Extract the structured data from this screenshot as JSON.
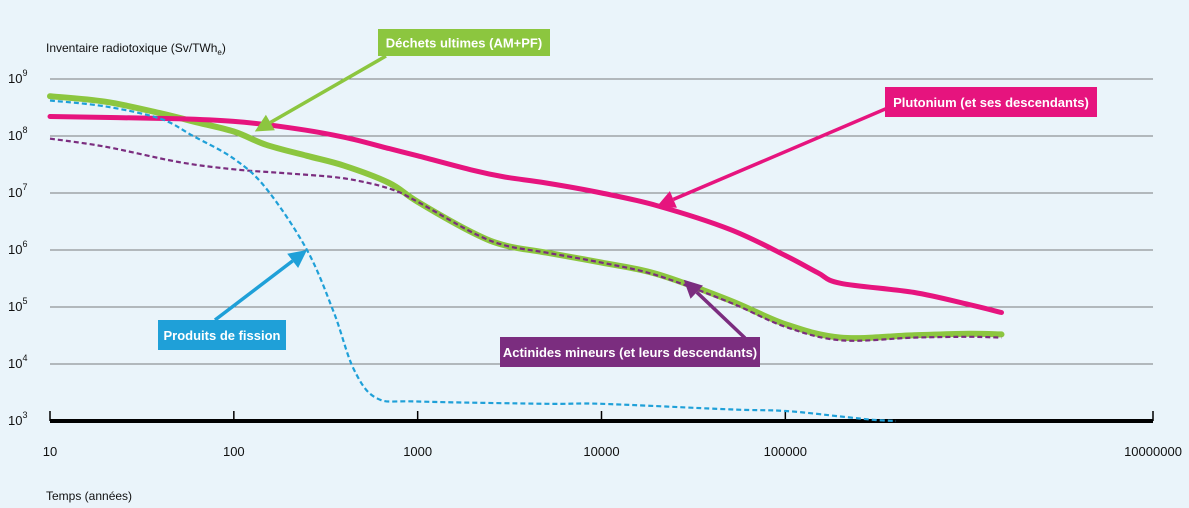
{
  "chart_data": {
    "type": "line",
    "ylabel_main": "Inventaire radiotoxique (Sv/TWh",
    "ylabel_sub": "e",
    "ylabel_close": ")",
    "xlabel": "Temps (années)",
    "x_scale": "log",
    "y_scale": "log",
    "xlim": [
      10,
      10000000
    ],
    "ylim": [
      1000,
      1000000000
    ],
    "grid": true,
    "x_ticks": [
      {
        "value": 10,
        "label": "10"
      },
      {
        "value": 100,
        "label": "100"
      },
      {
        "value": 1000,
        "label": "1000"
      },
      {
        "value": 10000,
        "label": "10000"
      },
      {
        "value": 100000,
        "label": "100000"
      },
      {
        "value": 10000000,
        "label": "10000000"
      }
    ],
    "y_ticks": [
      {
        "value": 1000,
        "base": "10",
        "exp": "3"
      },
      {
        "value": 10000,
        "base": "10",
        "exp": "4"
      },
      {
        "value": 100000,
        "base": "10",
        "exp": "5"
      },
      {
        "value": 1000000,
        "base": "10",
        "exp": "6"
      },
      {
        "value": 10000000,
        "base": "10",
        "exp": "7"
      },
      {
        "value": 100000000,
        "base": "10",
        "exp": "8"
      },
      {
        "value": 1000000000,
        "base": "10",
        "exp": "9"
      }
    ],
    "series": [
      {
        "name": "Déchets ultimes (AM+PF)",
        "color": "#8cc63f",
        "style": "solid",
        "width": 6,
        "points": [
          [
            10,
            500000000
          ],
          [
            20,
            400000000
          ],
          [
            40,
            250000000
          ],
          [
            60,
            180000000
          ],
          [
            100,
            120000000
          ],
          [
            150,
            70000000
          ],
          [
            250,
            45000000
          ],
          [
            400,
            30000000
          ],
          [
            700,
            15000000
          ],
          [
            1000,
            7000000
          ],
          [
            2000,
            2000000
          ],
          [
            3000,
            1200000
          ],
          [
            5000,
            900000
          ],
          [
            10000,
            600000
          ],
          [
            20000,
            380000
          ],
          [
            50000,
            130000
          ],
          [
            100000,
            50000
          ],
          [
            200000,
            29000
          ],
          [
            500000,
            32000
          ],
          [
            1000000,
            34000
          ],
          [
            1500000,
            33000
          ]
        ]
      },
      {
        "name": "Actinides mineurs (et leurs descendants)",
        "color": "#7b2d7f",
        "style": "dashed",
        "width": 2.2,
        "points": [
          [
            10,
            90000000
          ],
          [
            20,
            65000000
          ],
          [
            50,
            35000000
          ],
          [
            100,
            26000000
          ],
          [
            200,
            22000000
          ],
          [
            400,
            18000000
          ],
          [
            700,
            12000000
          ],
          [
            1000,
            7000000
          ],
          [
            2000,
            2000000
          ],
          [
            3000,
            1200000
          ],
          [
            5000,
            900000
          ],
          [
            10000,
            600000
          ],
          [
            20000,
            360000
          ],
          [
            50000,
            120000
          ],
          [
            100000,
            45000
          ],
          [
            200000,
            26000
          ],
          [
            500000,
            29000
          ],
          [
            1000000,
            30000
          ],
          [
            1500000,
            29000
          ]
        ]
      },
      {
        "name": "Plutonium (et ses descendants)",
        "color": "#e6147e",
        "style": "solid",
        "width": 5,
        "points": [
          [
            10,
            220000000
          ],
          [
            50,
            200000000
          ],
          [
            100,
            180000000
          ],
          [
            200,
            140000000
          ],
          [
            400,
            95000000
          ],
          [
            700,
            60000000
          ],
          [
            1000,
            45000000
          ],
          [
            2000,
            25000000
          ],
          [
            3000,
            19000000
          ],
          [
            5000,
            15000000
          ],
          [
            10000,
            10000000
          ],
          [
            20000,
            6000000
          ],
          [
            50000,
            2300000
          ],
          [
            100000,
            800000
          ],
          [
            150000,
            400000
          ],
          [
            200000,
            260000
          ],
          [
            500000,
            180000
          ],
          [
            1000000,
            110000
          ],
          [
            1500000,
            80000
          ]
        ]
      },
      {
        "name": "Produits de fission",
        "color": "#1fa0d8",
        "style": "dashed",
        "width": 2.2,
        "points": [
          [
            10,
            420000000
          ],
          [
            20,
            330000000
          ],
          [
            40,
            200000000
          ],
          [
            60,
            100000000
          ],
          [
            100,
            40000000
          ],
          [
            150,
            12000000
          ],
          [
            250,
            1000000
          ],
          [
            350,
            80000
          ],
          [
            450,
            8000
          ],
          [
            600,
            2500
          ],
          [
            1000,
            2200
          ],
          [
            5000,
            2000
          ],
          [
            10000,
            2000
          ],
          [
            50000,
            1600
          ],
          [
            100000,
            1500
          ],
          [
            200000,
            1200
          ],
          [
            300000,
            1050
          ],
          [
            400000,
            1000
          ]
        ]
      }
    ],
    "annotations": [
      {
        "text": "Déchets ultimes (AM+PF)",
        "color": "#8cc63f",
        "target": [
          130,
          120000000
        ]
      },
      {
        "text": "Plutonium (et ses descendants)",
        "color": "#e6147e",
        "target": [
          20000,
          5800000
        ]
      },
      {
        "text": "Produits de fission",
        "color": "#1fa0d8",
        "target": [
          250,
          1000000
        ]
      },
      {
        "text": "Actinides mineurs (et leurs descendants)",
        "color": "#7b2d7f",
        "target": [
          28000,
          300000
        ]
      }
    ]
  }
}
